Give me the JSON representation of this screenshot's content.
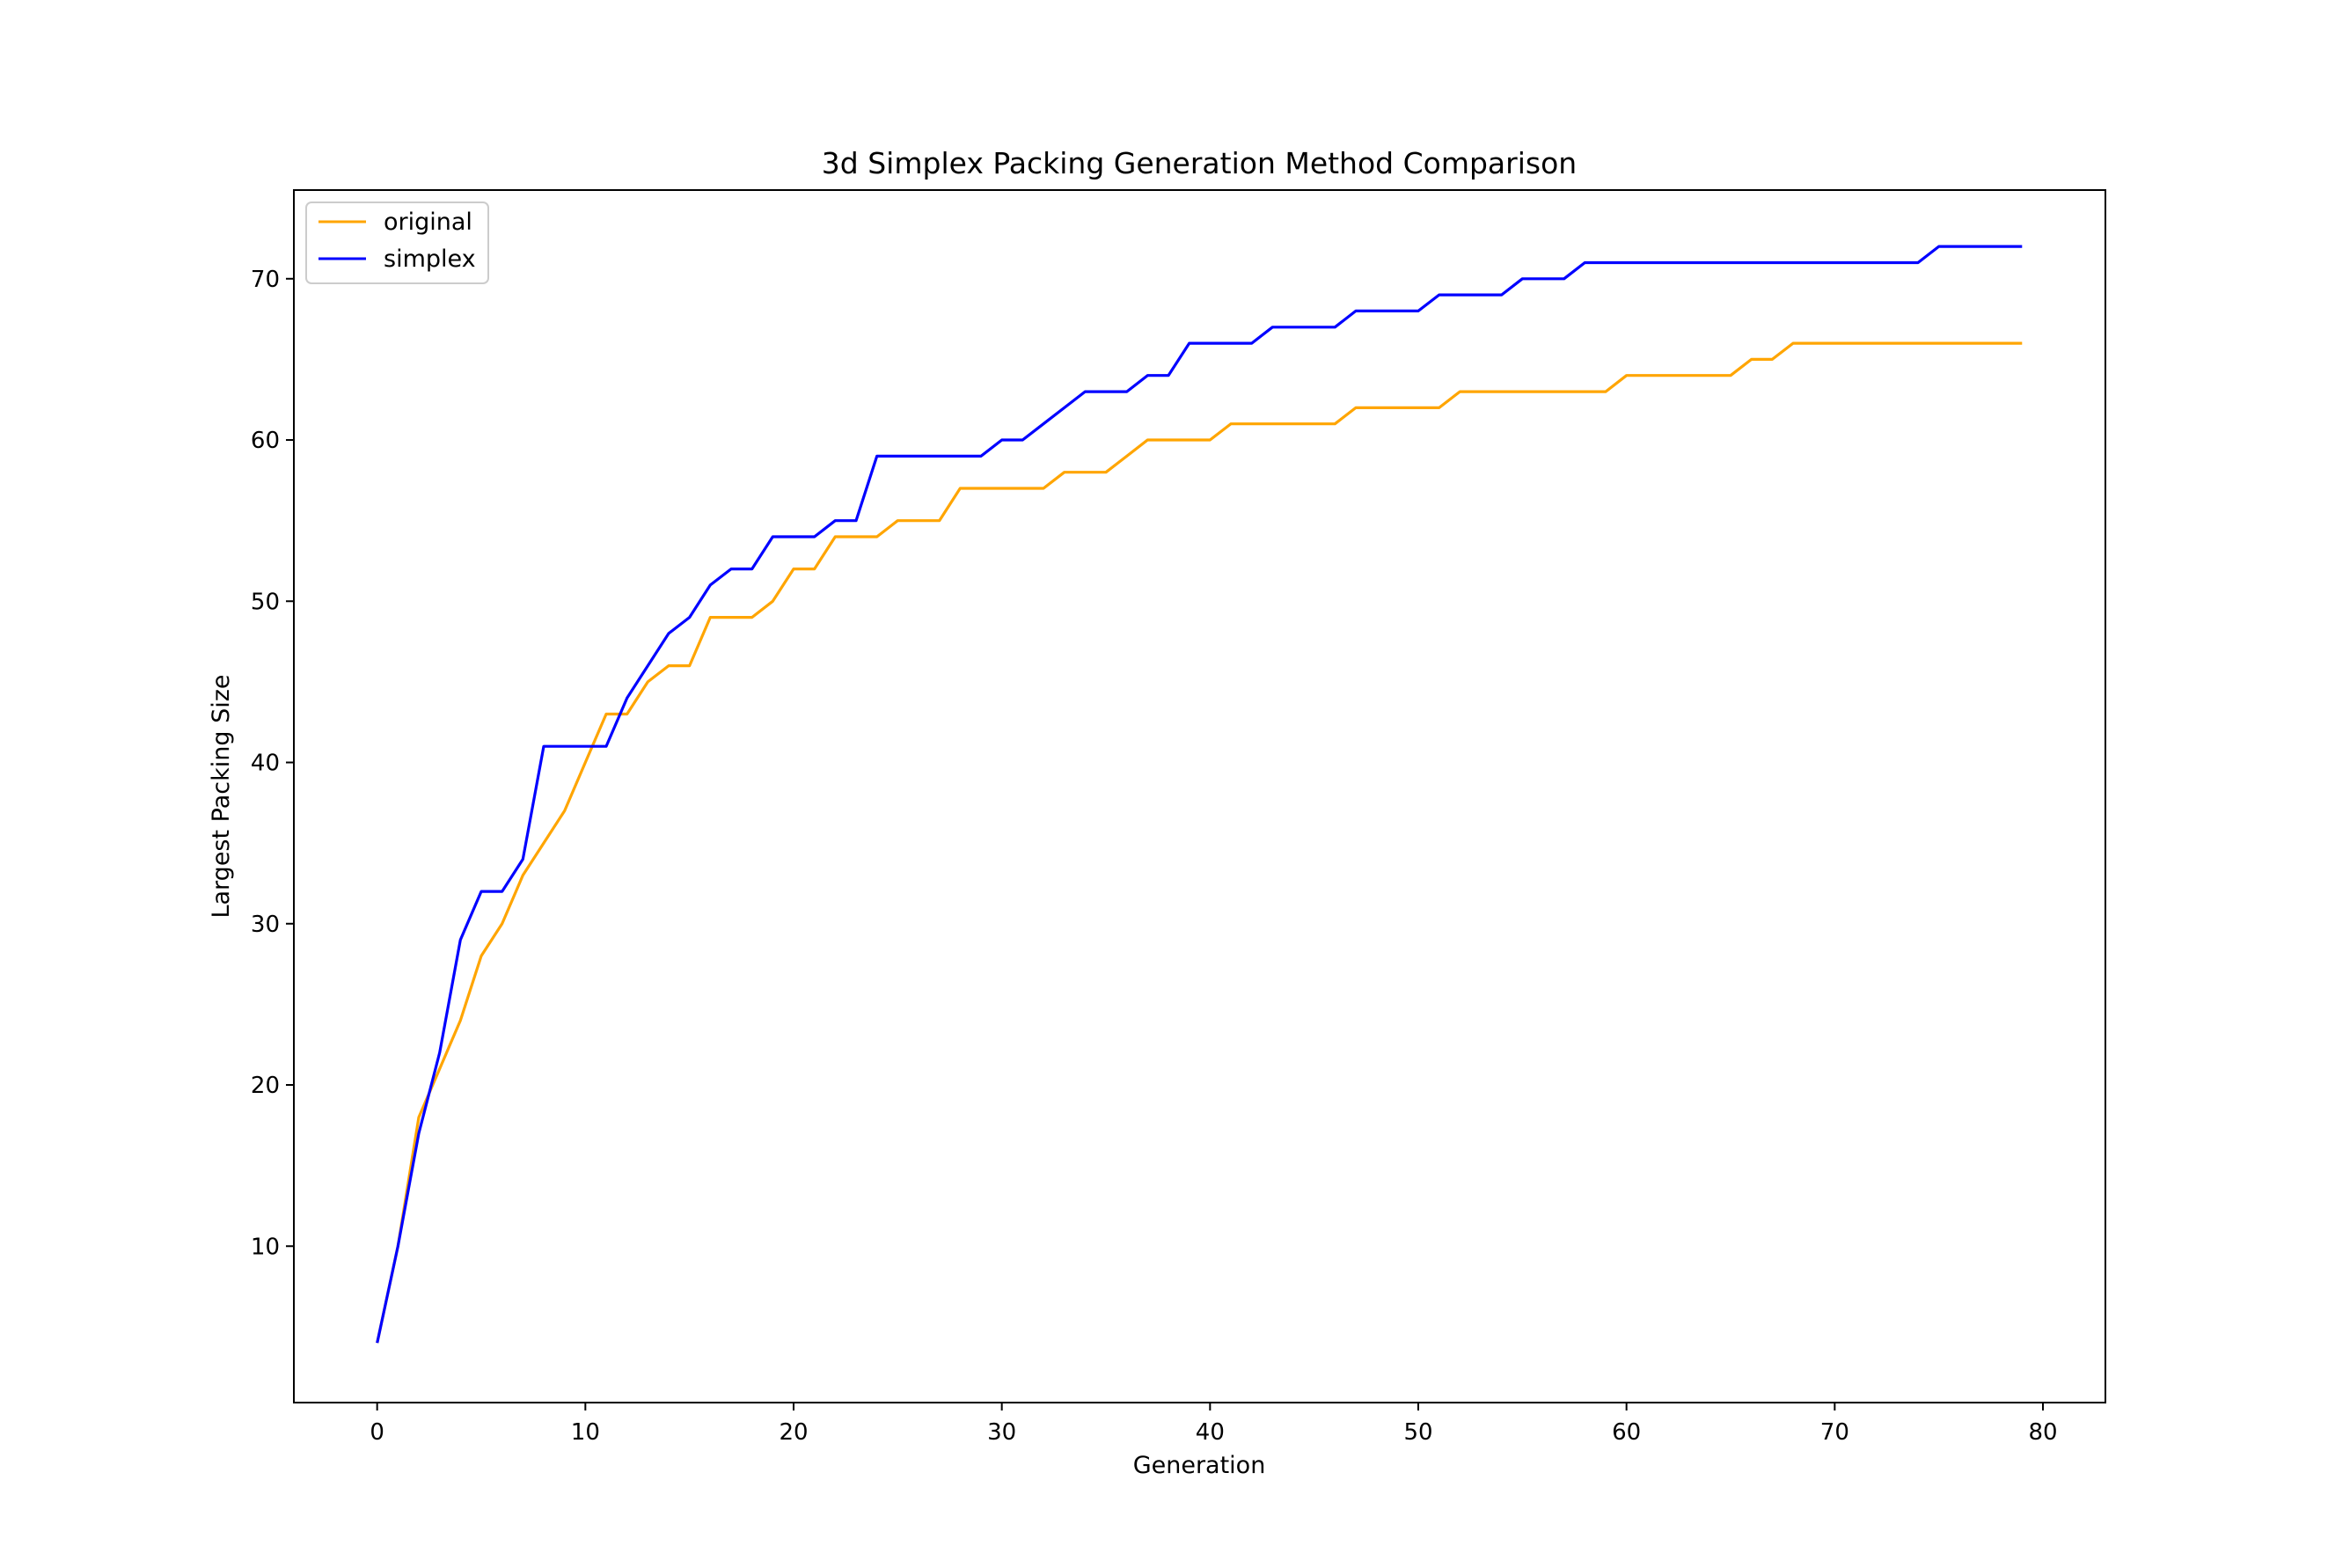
{
  "chart_data": {
    "type": "line",
    "title": "3d Simplex Packing Generation Method Comparison",
    "xlabel": "Generation",
    "ylabel": "Largest Packing Size",
    "xlim": [
      -4,
      83
    ],
    "ylim": [
      0.3,
      75.5
    ],
    "xticks": [
      0,
      10,
      20,
      30,
      40,
      50,
      60,
      70,
      80
    ],
    "yticks": [
      10,
      20,
      30,
      40,
      50,
      60,
      70
    ],
    "grid": false,
    "legend_position": "top-left",
    "series": [
      {
        "name": "original",
        "color": "#ffa500",
        "x": [
          0,
          1,
          2,
          3,
          4,
          5,
          6,
          7,
          8,
          9,
          10,
          11,
          12,
          13,
          14,
          15,
          16,
          17,
          18,
          19,
          20,
          21,
          22,
          23,
          24,
          25,
          26,
          27,
          28,
          29,
          30,
          31,
          32,
          33,
          34,
          35,
          36,
          37,
          38,
          39,
          40,
          41,
          42,
          43,
          44,
          45,
          46,
          47,
          48,
          49,
          50,
          51,
          52,
          53,
          54,
          55,
          56,
          57,
          58,
          59,
          60,
          61,
          62,
          63,
          64,
          65,
          66,
          67,
          68,
          69,
          70,
          71,
          72,
          73,
          74,
          75,
          76,
          77,
          78,
          79
        ],
        "values": [
          4,
          10,
          18,
          21,
          24,
          28,
          30,
          33,
          35,
          37,
          40,
          43,
          43,
          45,
          46,
          46,
          49,
          49,
          49,
          50,
          52,
          52,
          54,
          54,
          54,
          55,
          55,
          55,
          57,
          57,
          57,
          57,
          57,
          58,
          58,
          58,
          59,
          60,
          60,
          60,
          60,
          61,
          61,
          61,
          61,
          61,
          61,
          62,
          62,
          62,
          62,
          62,
          63,
          63,
          63,
          63,
          63,
          63,
          63,
          63,
          64,
          64,
          64,
          64,
          64,
          64,
          65,
          65,
          66,
          66,
          66,
          66,
          66,
          66,
          66,
          66,
          66,
          66,
          66,
          66
        ]
      },
      {
        "name": "simplex",
        "color": "#0000ff",
        "x": [
          0,
          1,
          2,
          3,
          4,
          5,
          6,
          7,
          8,
          9,
          10,
          11,
          12,
          13,
          14,
          15,
          16,
          17,
          18,
          19,
          20,
          21,
          22,
          23,
          24,
          25,
          26,
          27,
          28,
          29,
          30,
          31,
          32,
          33,
          34,
          35,
          36,
          37,
          38,
          39,
          40,
          41,
          42,
          43,
          44,
          45,
          46,
          47,
          48,
          49,
          50,
          51,
          52,
          53,
          54,
          55,
          56,
          57,
          58,
          59,
          60,
          61,
          62,
          63,
          64,
          65,
          66,
          67,
          68,
          69,
          70,
          71,
          72,
          73,
          74,
          75,
          76,
          77,
          78,
          79
        ],
        "values": [
          4,
          10,
          17,
          22,
          29,
          32,
          32,
          34,
          41,
          41,
          41,
          41,
          44,
          46,
          48,
          49,
          51,
          52,
          52,
          54,
          54,
          54,
          55,
          55,
          59,
          59,
          59,
          59,
          59,
          59,
          60,
          60,
          61,
          62,
          63,
          63,
          63,
          64,
          64,
          66,
          66,
          66,
          66,
          67,
          67,
          67,
          67,
          68,
          68,
          68,
          68,
          69,
          69,
          69,
          69,
          70,
          70,
          70,
          71,
          71,
          71,
          71,
          71,
          71,
          71,
          71,
          71,
          71,
          71,
          71,
          71,
          71,
          71,
          71,
          71,
          72,
          72,
          72,
          72,
          72
        ]
      }
    ]
  }
}
